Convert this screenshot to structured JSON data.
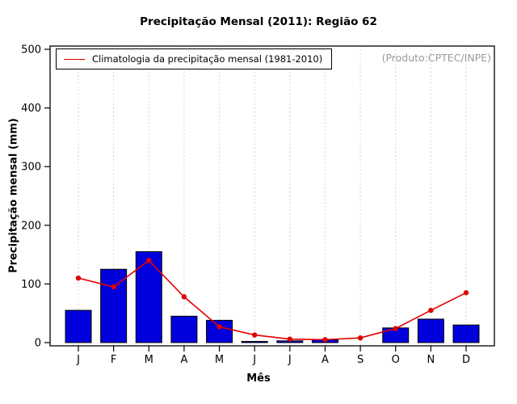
{
  "annotation": "(Produto:CPTEC/INPE)",
  "chart_data": {
    "type": "bar",
    "title": "Precipitação Mensal (2011): Região 62",
    "xlabel": "Mês",
    "ylabel": "Precipitação mensal (mm)",
    "categories": [
      "J",
      "F",
      "M",
      "A",
      "M",
      "J",
      "J",
      "A",
      "S",
      "O",
      "N",
      "D"
    ],
    "series": [
      {
        "name": "Precipitação Mensal (2011)",
        "type": "bar",
        "color": "#0000dd",
        "values": [
          55,
          125,
          155,
          45,
          38,
          2,
          3,
          5,
          0,
          25,
          40,
          30
        ]
      },
      {
        "name": "Climatologia da precipitação mensal (1981-2010)",
        "type": "line",
        "color": "#e10000",
        "values": [
          110,
          95,
          140,
          78,
          27,
          13,
          6,
          5,
          8,
          24,
          55,
          85
        ]
      }
    ],
    "ylim": [
      0,
      500
    ],
    "yticks": [
      0,
      100,
      200,
      300,
      400,
      500
    ],
    "grid": "dotted-vertical",
    "grid_color": "#c9c9c9",
    "legend_position": "top-left"
  }
}
